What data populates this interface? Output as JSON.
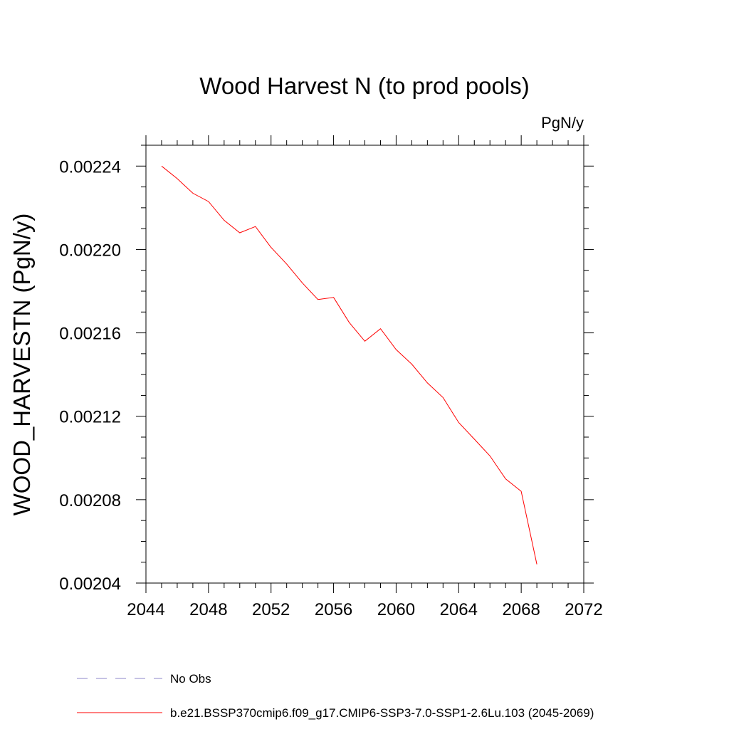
{
  "chart_data": {
    "type": "line",
    "title": "Wood Harvest N (to prod pools)",
    "units_label": "PgN/y",
    "xlabel": "",
    "ylabel": "WOOD_HARVESTN  (PgN/y)",
    "xlim": [
      2044,
      2072
    ],
    "ylim": [
      0.00204,
      0.00225
    ],
    "x_ticks": [
      2044,
      2048,
      2052,
      2056,
      2060,
      2064,
      2068,
      2072
    ],
    "x_tick_labels": [
      "2044",
      "2048",
      "2052",
      "2056",
      "2060",
      "2064",
      "2068",
      "2072"
    ],
    "y_ticks": [
      0.00204,
      0.00208,
      0.00212,
      0.00216,
      0.0022,
      0.00224
    ],
    "y_tick_labels": [
      "0.00204",
      "0.00208",
      "0.00212",
      "0.00216",
      "0.00220",
      "0.00224"
    ],
    "x_minor_step": 1,
    "y_minor_step": 1e-05,
    "grid": false,
    "series": [
      {
        "name": "b.e21.BSSP370cmip6.f09_g17.CMIP6-SSP3-7.0-SSP1-2.6Lu.103 (2045-2069)",
        "color": "#ff0000",
        "x": [
          2045,
          2046,
          2047,
          2048,
          2049,
          2050,
          2051,
          2052,
          2053,
          2054,
          2055,
          2056,
          2057,
          2058,
          2059,
          2060,
          2061,
          2062,
          2063,
          2064,
          2065,
          2066,
          2067,
          2068,
          2069
        ],
        "values": [
          0.00224,
          0.002234,
          0.002227,
          0.002223,
          0.002214,
          0.002208,
          0.002211,
          0.002201,
          0.002193,
          0.002184,
          0.002176,
          0.002177,
          0.002165,
          0.002156,
          0.002162,
          0.002152,
          0.002145,
          0.002136,
          0.002129,
          0.002117,
          0.002109,
          0.002101,
          0.00209,
          0.002084,
          0.002049
        ]
      }
    ],
    "legend": [
      {
        "label": "No Obs",
        "color": "#8c84c8",
        "style": "dashed"
      },
      {
        "label": "b.e21.BSSP370cmip6.f09_g17.CMIP6-SSP3-7.0-SSP1-2.6Lu.103 (2045-2069)",
        "color": "#ff0000",
        "style": "solid"
      }
    ],
    "legend_position": "bottom"
  }
}
